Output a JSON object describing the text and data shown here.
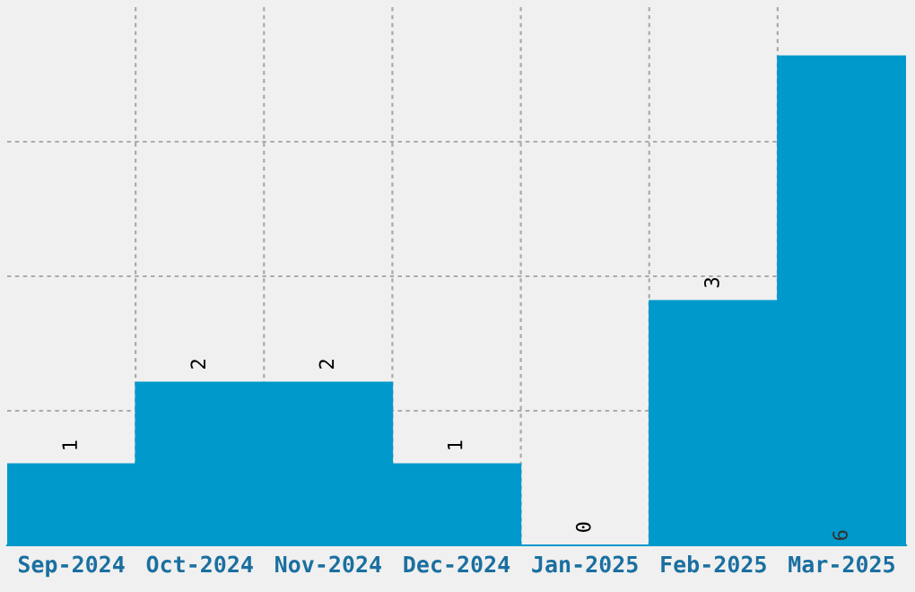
{
  "chart_data": {
    "type": "bar",
    "categories": [
      "Sep-2024",
      "Oct-2024",
      "Nov-2024",
      "Dec-2024",
      "Jan-2025",
      "Feb-2025",
      "Mar-2025"
    ],
    "values": [
      1,
      2,
      2,
      1,
      0,
      3,
      6
    ],
    "color": "#0099cc",
    "ylim": [
      0,
      6.6
    ],
    "yticks": [
      {
        "value": 1.65,
        "label": null
      },
      {
        "value": 3.3,
        "label": null
      },
      {
        "value": 4.95,
        "label": null
      }
    ],
    "grid": true,
    "data_labels": true
  }
}
